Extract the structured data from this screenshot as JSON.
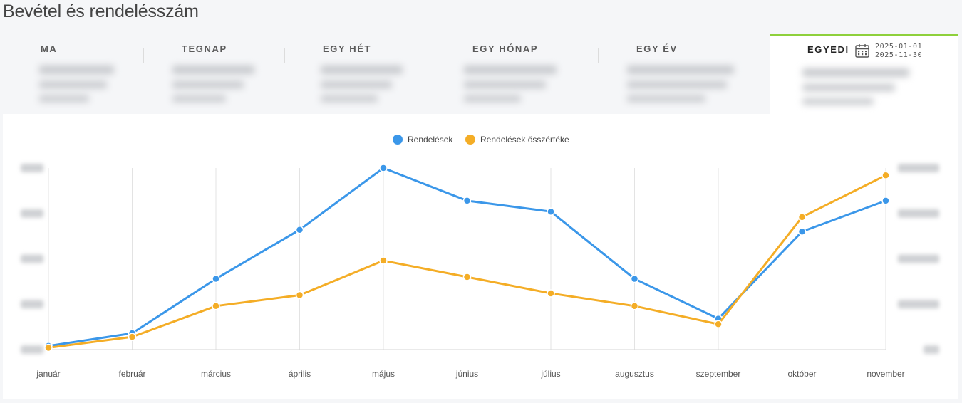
{
  "page": {
    "title": "Bevétel és rendelésszám"
  },
  "tabs": [
    {
      "label": "MA",
      "active": false
    },
    {
      "label": "TEGNAP",
      "active": false
    },
    {
      "label": "EGY HÉT",
      "active": false
    },
    {
      "label": "EGY HÓNAP",
      "active": false
    },
    {
      "label": "EGY ÉV",
      "active": false
    },
    {
      "label": "EGYEDI",
      "active": true,
      "date_from": "2025-01-01",
      "date_to": "2025-11-30",
      "icon": "calendar-icon"
    }
  ],
  "colors": {
    "accent": "#8ed03b",
    "orders": "#3b97e9",
    "value": "#f4ad26"
  },
  "chart_data": {
    "type": "line",
    "categories": [
      "január",
      "február",
      "március",
      "április",
      "május",
      "június",
      "július",
      "augusztus",
      "szeptember",
      "október",
      "november"
    ],
    "series": [
      {
        "name": "Rendelések",
        "axis": "left",
        "color": "#3b97e9",
        "values": [
          2,
          9,
          39,
          66,
          100,
          82,
          76,
          39,
          17,
          65,
          82
        ]
      },
      {
        "name": "Rendelések összértéke",
        "axis": "right",
        "color": "#f4ad26",
        "values": [
          1,
          7,
          24,
          30,
          49,
          40,
          31,
          24,
          14,
          73,
          96
        ]
      }
    ],
    "ylim": [
      0,
      100
    ],
    "y_axis_labels_hidden": true,
    "grid": "vertical",
    "legend": "top-center",
    "title": "",
    "xlabel": "",
    "ylabel": ""
  }
}
